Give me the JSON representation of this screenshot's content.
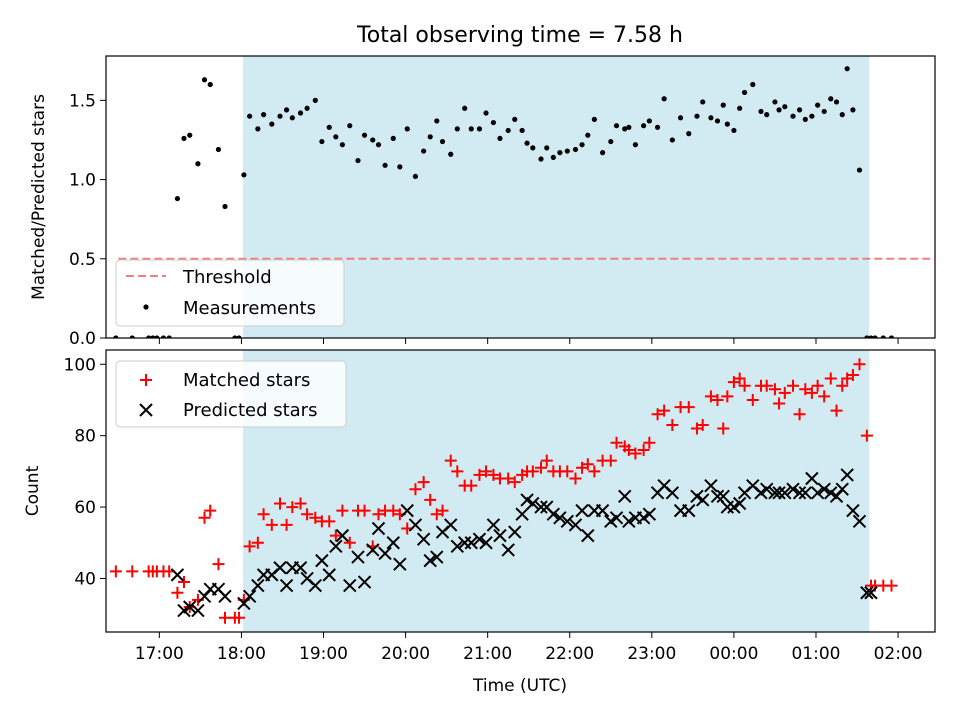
{
  "figure_title": "Total observing time = 7.58 h",
  "chart_data": [
    {
      "type": "scatter",
      "title": "Total observing time = 7.58 h",
      "ylabel": "Matched/Predicted stars",
      "xlabel": "",
      "xlim": [
        16.35,
        26.45
      ],
      "ylim": [
        0,
        1.78
      ],
      "yticks": [
        0.0,
        0.5,
        1.0,
        1.5
      ],
      "ytick_labels": [
        "0.0",
        "0.5",
        "1.0",
        "1.5"
      ],
      "shaded_span": [
        18.02,
        25.65
      ],
      "shade_color": "#add8e6",
      "legend_position": "lower-left",
      "threshold": {
        "name": "Threshold",
        "y": 0.5,
        "x": [
          16.5,
          26.75
        ],
        "color": "#f08080",
        "style": "dashed"
      },
      "series": [
        {
          "name": "Measurements",
          "color": "#000000",
          "marker": "dot",
          "x": [
            16.47,
            16.67,
            16.87,
            16.92,
            16.97,
            17.05,
            17.12,
            17.22,
            17.3,
            17.37,
            17.47,
            17.55,
            17.62,
            17.72,
            17.8,
            17.92,
            17.97,
            18.03,
            18.1,
            18.2,
            18.27,
            18.37,
            18.47,
            18.55,
            18.62,
            18.72,
            18.8,
            18.9,
            18.98,
            19.07,
            19.15,
            19.23,
            19.32,
            19.42,
            19.5,
            19.6,
            19.67,
            19.75,
            19.85,
            19.93,
            20.02,
            20.12,
            20.22,
            20.3,
            20.38,
            20.45,
            20.55,
            20.63,
            20.72,
            20.8,
            20.9,
            20.98,
            21.07,
            21.15,
            21.25,
            21.33,
            21.42,
            21.48,
            21.55,
            21.65,
            21.72,
            21.8,
            21.88,
            21.97,
            22.07,
            22.15,
            22.22,
            22.3,
            22.4,
            22.5,
            22.57,
            22.67,
            22.72,
            22.8,
            22.9,
            22.97,
            23.07,
            23.15,
            23.25,
            23.35,
            23.45,
            23.55,
            23.62,
            23.72,
            23.8,
            23.87,
            23.92,
            24.0,
            24.07,
            24.13,
            24.23,
            24.33,
            24.4,
            24.5,
            24.55,
            24.62,
            24.72,
            24.8,
            24.87,
            24.95,
            25.02,
            25.1,
            25.18,
            25.25,
            25.32,
            25.38,
            25.45,
            25.53,
            25.62,
            25.67,
            25.72,
            25.82,
            25.92
          ],
          "y": [
            0.0,
            0.0,
            0.0,
            0.0,
            0.0,
            0.0,
            0.0,
            0.88,
            1.26,
            1.28,
            1.1,
            1.63,
            1.6,
            1.19,
            0.83,
            0.0,
            0.0,
            1.03,
            1.4,
            1.32,
            1.41,
            1.35,
            1.4,
            1.44,
            1.39,
            1.42,
            1.45,
            1.5,
            1.24,
            1.33,
            1.27,
            1.22,
            1.34,
            1.12,
            1.28,
            1.25,
            1.22,
            1.09,
            1.26,
            1.08,
            1.32,
            1.02,
            1.18,
            1.27,
            1.37,
            1.24,
            1.16,
            1.32,
            1.45,
            1.32,
            1.32,
            1.42,
            1.36,
            1.26,
            1.31,
            1.38,
            1.31,
            1.23,
            1.2,
            1.13,
            1.2,
            1.14,
            1.17,
            1.18,
            1.19,
            1.22,
            1.28,
            1.38,
            1.17,
            1.24,
            1.34,
            1.32,
            1.33,
            1.22,
            1.34,
            1.37,
            1.33,
            1.51,
            1.25,
            1.39,
            1.29,
            1.4,
            1.49,
            1.39,
            1.37,
            1.47,
            1.35,
            1.31,
            1.45,
            1.55,
            1.6,
            1.43,
            1.41,
            1.49,
            1.44,
            1.46,
            1.4,
            1.44,
            1.38,
            1.4,
            1.47,
            1.43,
            1.51,
            1.49,
            1.41,
            1.7,
            1.44,
            1.06,
            0.0,
            0.0,
            0.0,
            0.0,
            0.0
          ]
        }
      ]
    },
    {
      "type": "scatter",
      "title": "",
      "ylabel": "Count",
      "xlabel": "Time (UTC)",
      "xlim": [
        16.35,
        26.45
      ],
      "ylim": [
        25,
        104
      ],
      "yticks": [
        40,
        60,
        80,
        100
      ],
      "ytick_labels": [
        "40",
        "60",
        "80",
        "100"
      ],
      "xticks": [
        17,
        18,
        19,
        20,
        21,
        22,
        23,
        24,
        25,
        26
      ],
      "xtick_labels": [
        "17:00",
        "18:00",
        "19:00",
        "20:00",
        "21:00",
        "22:00",
        "23:00",
        "00:00",
        "01:00",
        "02:00"
      ],
      "shaded_span": [
        18.02,
        25.65
      ],
      "shade_color": "#add8e6",
      "legend_position": "top-left",
      "series": [
        {
          "name": "Matched stars",
          "color": "#ff0000",
          "marker": "plus",
          "x": [
            16.47,
            16.67,
            16.87,
            16.92,
            16.97,
            17.05,
            17.12,
            17.22,
            17.3,
            17.37,
            17.47,
            17.55,
            17.62,
            17.72,
            17.8,
            17.92,
            17.97,
            18.03,
            18.1,
            18.2,
            18.27,
            18.37,
            18.47,
            18.55,
            18.62,
            18.72,
            18.8,
            18.9,
            18.98,
            19.07,
            19.15,
            19.23,
            19.32,
            19.42,
            19.5,
            19.6,
            19.67,
            19.75,
            19.85,
            19.93,
            20.02,
            20.12,
            20.22,
            20.3,
            20.38,
            20.45,
            20.55,
            20.63,
            20.72,
            20.8,
            20.9,
            20.98,
            21.07,
            21.15,
            21.25,
            21.33,
            21.42,
            21.48,
            21.55,
            21.65,
            21.72,
            21.8,
            21.88,
            21.97,
            22.07,
            22.15,
            22.22,
            22.3,
            22.4,
            22.5,
            22.57,
            22.67,
            22.72,
            22.8,
            22.9,
            22.97,
            23.07,
            23.15,
            23.25,
            23.35,
            23.45,
            23.55,
            23.62,
            23.72,
            23.8,
            23.87,
            23.92,
            24.0,
            24.07,
            24.13,
            24.23,
            24.33,
            24.4,
            24.5,
            24.55,
            24.62,
            24.72,
            24.8,
            24.87,
            24.95,
            25.02,
            25.1,
            25.18,
            25.25,
            25.32,
            25.38,
            25.45,
            25.53,
            25.62,
            25.67,
            25.72,
            25.82,
            25.92
          ],
          "y": [
            42,
            42,
            42,
            42,
            42,
            42,
            42,
            36,
            39,
            32,
            34,
            57,
            59,
            44,
            29,
            29,
            29,
            34,
            49,
            50,
            58,
            55,
            61,
            55,
            60,
            61,
            58,
            57,
            56,
            56,
            52,
            59,
            50,
            59,
            59,
            49,
            58,
            59,
            59,
            58,
            54,
            65,
            67,
            62,
            58,
            59,
            73,
            70,
            66,
            66,
            69,
            70,
            69,
            68,
            68,
            67,
            69,
            70,
            70,
            71,
            73,
            70,
            70,
            70,
            68,
            71,
            72,
            70,
            73,
            73,
            78,
            77,
            76,
            75,
            76,
            78,
            86,
            87,
            83,
            88,
            88,
            82,
            83,
            91,
            90,
            82,
            91,
            95,
            96,
            94,
            90,
            94,
            94,
            93,
            89,
            92,
            94,
            86,
            93,
            92,
            94,
            91,
            96,
            87,
            94,
            96,
            97,
            100,
            80,
            38,
            38,
            38,
            38
          ]
        },
        {
          "name": "Predicted stars",
          "color": "#000000",
          "marker": "x",
          "x": [
            17.22,
            17.3,
            17.37,
            17.47,
            17.55,
            17.62,
            17.72,
            17.8,
            18.03,
            18.1,
            18.2,
            18.27,
            18.37,
            18.47,
            18.55,
            18.62,
            18.72,
            18.8,
            18.9,
            18.98,
            19.07,
            19.15,
            19.23,
            19.32,
            19.42,
            19.5,
            19.6,
            19.67,
            19.75,
            19.85,
            19.93,
            20.02,
            20.12,
            20.22,
            20.3,
            20.38,
            20.45,
            20.55,
            20.63,
            20.72,
            20.8,
            20.9,
            20.98,
            21.07,
            21.15,
            21.25,
            21.33,
            21.42,
            21.48,
            21.55,
            21.65,
            21.72,
            21.8,
            21.88,
            21.97,
            22.07,
            22.15,
            22.22,
            22.3,
            22.4,
            22.5,
            22.57,
            22.67,
            22.72,
            22.8,
            22.9,
            22.97,
            23.07,
            23.15,
            23.25,
            23.35,
            23.45,
            23.55,
            23.62,
            23.72,
            23.8,
            23.87,
            23.92,
            24.0,
            24.07,
            24.13,
            24.23,
            24.33,
            24.4,
            24.5,
            24.55,
            24.62,
            24.72,
            24.8,
            24.87,
            24.95,
            25.02,
            25.1,
            25.18,
            25.25,
            25.32,
            25.38,
            25.45,
            25.53,
            25.62,
            25.67
          ],
          "y": [
            41,
            31,
            32,
            31,
            35,
            37,
            37,
            35,
            33,
            35,
            38,
            41,
            41,
            43,
            38,
            43,
            43,
            40,
            38,
            45,
            41,
            49,
            52,
            38,
            46,
            39,
            48,
            54,
            47,
            50,
            44,
            59,
            55,
            51,
            45,
            46,
            53,
            55,
            49,
            50,
            50,
            51,
            50,
            55,
            52,
            48,
            53,
            58,
            62,
            61,
            60,
            60,
            58,
            57,
            56,
            55,
            59,
            52,
            59,
            59,
            56,
            57,
            63,
            56,
            57,
            57,
            58,
            64,
            66,
            64,
            59,
            59,
            63,
            62,
            66,
            63,
            63,
            60,
            60,
            61,
            64,
            66,
            64,
            65,
            64,
            64,
            64,
            65,
            64,
            64,
            68,
            64,
            65,
            64,
            63,
            65,
            69,
            59,
            56,
            36,
            36
          ]
        }
      ]
    }
  ]
}
